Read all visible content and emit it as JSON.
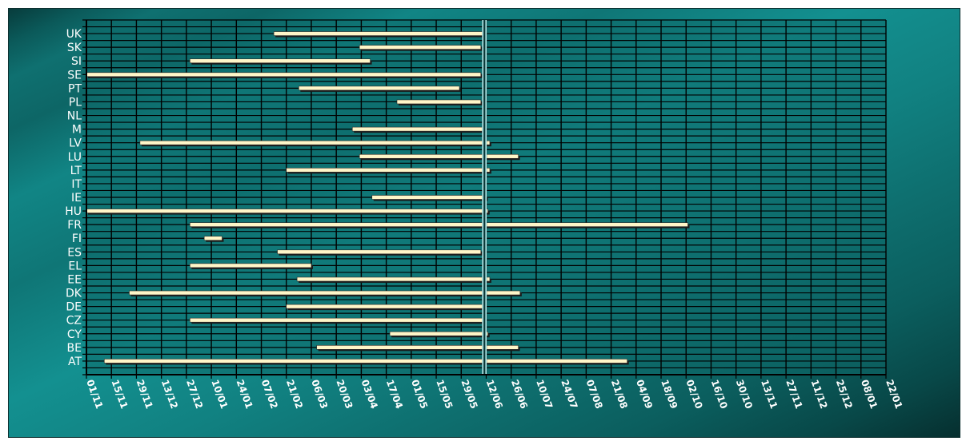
{
  "colors": {
    "plot_bg": "#0f6a6a",
    "grid": "#000000",
    "bar_fill": "#fff6c8",
    "bar_shadow": "#1a1a1a",
    "marker_line": "#bff4f4",
    "label": "#ffffff"
  },
  "chart_data": {
    "type": "bar",
    "orientation": "horizontal",
    "grid": true,
    "x_tick_labels": [
      "01/11",
      "15/11",
      "29/11",
      "13/12",
      "27/12",
      "10/01",
      "24/01",
      "07/02",
      "21/02",
      "06/03",
      "20/03",
      "03/04",
      "17/04",
      "01/05",
      "15/05",
      "29/05",
      "12/06",
      "26/06",
      "10/07",
      "24/07",
      "07/08",
      "21/08",
      "04/09",
      "18/09",
      "02/10",
      "16/10",
      "30/10",
      "13/11",
      "27/11",
      "11/12",
      "25/12",
      "08/01",
      "22/01"
    ],
    "reference_line": "12/06",
    "categories": [
      "UK",
      "SK",
      "SI",
      "SE",
      "PT",
      "PL",
      "NL",
      "M",
      "LV",
      "LU",
      "LT",
      "IT",
      "IE",
      "HU",
      "FR",
      "FI",
      "ES",
      "EL",
      "EE",
      "DK",
      "DE",
      "CZ",
      "CY",
      "BE",
      "AT"
    ],
    "bars": [
      {
        "category": "UK",
        "start": "14/02",
        "end": "11/06"
      },
      {
        "category": "SK",
        "start": "03/04",
        "end": "10/06"
      },
      {
        "category": "SI",
        "start": "29/12",
        "end": "09/04"
      },
      {
        "category": "SE",
        "start": "01/11",
        "end": "10/06"
      },
      {
        "category": "PT",
        "start": "28/02",
        "end": "29/05"
      },
      {
        "category": "PL",
        "start": "24/04",
        "end": "10/06"
      },
      {
        "category": "NL",
        "start": "",
        "end": ""
      },
      {
        "category": "M",
        "start": "30/03",
        "end": "11/06"
      },
      {
        "category": "LV",
        "start": "01/12",
        "end": "15/06"
      },
      {
        "category": "LU",
        "start": "03/04",
        "end": "01/07"
      },
      {
        "category": "LT",
        "start": "21/02",
        "end": "15/06"
      },
      {
        "category": "IT",
        "start": "",
        "end": ""
      },
      {
        "category": "IE",
        "start": "10/04",
        "end": "13/06"
      },
      {
        "category": "HU",
        "start": "01/11",
        "end": "14/06"
      },
      {
        "category": "FR",
        "start": "29/12",
        "end": "04/10"
      },
      {
        "category": "FI",
        "start": "06/01",
        "end": "16/01"
      },
      {
        "category": "ES",
        "start": "16/02",
        "end": "10/06"
      },
      {
        "category": "EL",
        "start": "29/12",
        "end": "07/03"
      },
      {
        "category": "EE",
        "start": "27/02",
        "end": "15/06"
      },
      {
        "category": "DK",
        "start": "25/11",
        "end": "02/07"
      },
      {
        "category": "DE",
        "start": "21/02",
        "end": "11/06"
      },
      {
        "category": "CZ",
        "start": "29/12",
        "end": "11/06"
      },
      {
        "category": "CY",
        "start": "20/04",
        "end": "14/06"
      },
      {
        "category": "BE",
        "start": "10/03",
        "end": "01/07"
      },
      {
        "category": "AT",
        "start": "11/11",
        "end": "31/08"
      }
    ]
  }
}
